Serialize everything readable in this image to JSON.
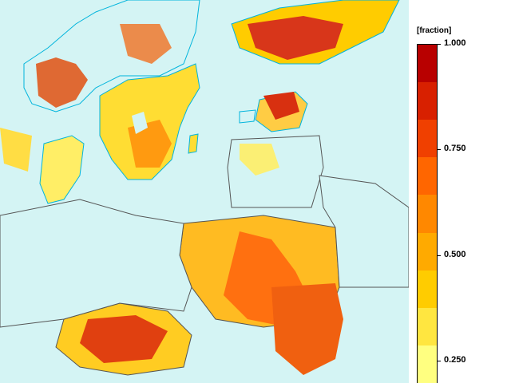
{
  "legend": {
    "unit": "[fraction]",
    "ticks": [
      {
        "label": "1.000",
        "value": 1.0
      },
      {
        "label": "0.750",
        "value": 0.75
      },
      {
        "label": "0.500",
        "value": 0.5
      },
      {
        "label": "0.250",
        "value": 0.25
      }
    ],
    "colors": [
      "#ffff80",
      "#ffe640",
      "#ffcc00",
      "#ffaa00",
      "#ff8800",
      "#ff6600",
      "#f04000",
      "#d82000",
      "#b80000"
    ]
  },
  "map": {
    "background": "#d4f4f4",
    "land": "#d4f4f4",
    "coast": "#00b4dc",
    "borders": "#555555"
  }
}
